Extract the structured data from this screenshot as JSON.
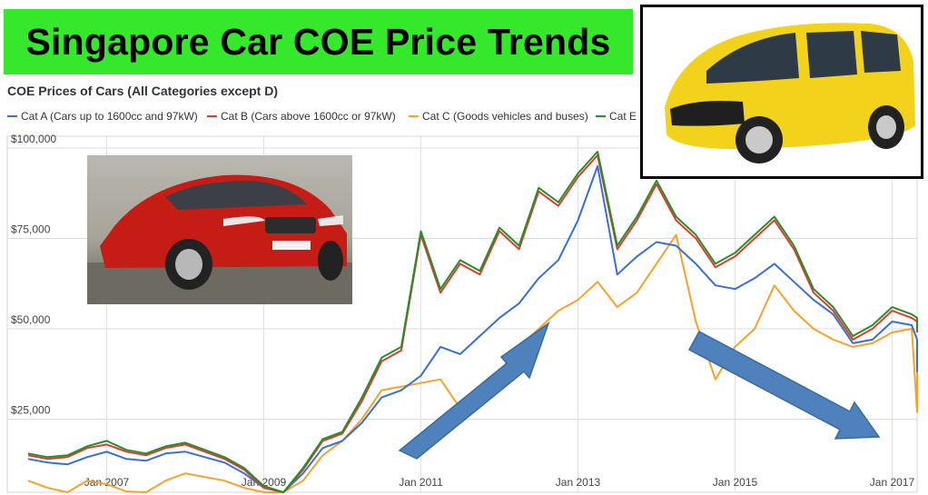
{
  "banner": {
    "title": "Singapore Car COE Price Trends"
  },
  "chart_title": "COE Prices of Cars (All Categories except D)",
  "colors": {
    "banner": "#36e82c",
    "cat_a": "#3a6fd0",
    "cat_b": "#d2432f",
    "cat_c": "#f3a32d",
    "cat_e": "#2e8a2e",
    "arrow": "#4f81bd"
  },
  "images": {
    "left_photo": "red sedan car photo",
    "right_photo": "yellow compact electric car photo"
  },
  "chart_data": {
    "type": "line",
    "title": "COE Prices of Cars (All Categories except D)",
    "xlabel": "",
    "ylabel": "",
    "xlim": [
      2006.0,
      2017.9
    ],
    "ylim": [
      0,
      100000
    ],
    "ytick_labels": [
      "$100,000",
      "$75,000",
      "$50,000",
      "$25,000"
    ],
    "yticks": [
      100000,
      75000,
      50000,
      25000
    ],
    "xtick_labels": [
      "Jan 2007",
      "Jan 2009",
      "Jan 2011",
      "Jan 2013",
      "Jan 2015",
      "Jan 2017"
    ],
    "xticks": [
      2007,
      2009,
      2011,
      2013,
      2015,
      2017
    ],
    "grid": true,
    "legend_position": "top",
    "series": [
      {
        "name": "Cat A (Cars up to 1600cc and 97kW)",
        "color": "#3a6fd0",
        "x": [
          2006.0,
          2006.25,
          2006.5,
          2006.75,
          2007.0,
          2007.25,
          2007.5,
          2007.75,
          2008.0,
          2008.25,
          2008.5,
          2008.75,
          2009.0,
          2009.25,
          2009.5,
          2009.75,
          2010.0,
          2010.25,
          2010.5,
          2010.75,
          2011.0,
          2011.25,
          2011.5,
          2011.75,
          2012.0,
          2012.25,
          2012.5,
          2012.75,
          2013.0,
          2013.25,
          2013.5,
          2013.75,
          2014.0,
          2014.25,
          2014.5,
          2014.75,
          2015.0,
          2015.25,
          2015.5,
          2015.75,
          2016.0,
          2016.25,
          2016.5,
          2016.75,
          2017.0,
          2017.25,
          2017.5,
          2017.75
        ],
        "values": [
          14000,
          13000,
          12500,
          14500,
          16000,
          14000,
          13500,
          15500,
          16000,
          14500,
          13000,
          10000,
          6000,
          4000,
          10000,
          17000,
          19000,
          24000,
          31000,
          33000,
          37000,
          45000,
          43000,
          48000,
          53000,
          57000,
          64000,
          69000,
          80000,
          95000,
          65000,
          70000,
          74000,
          73000,
          68000,
          62000,
          61000,
          64000,
          68000,
          63000,
          58000,
          54000,
          46000,
          47000,
          52000,
          51000,
          47000,
          38000
        ]
      },
      {
        "name": "Cat B (Cars above 1600cc or 97kW)",
        "color": "#d2432f",
        "x": [
          2006.0,
          2006.25,
          2006.5,
          2006.75,
          2007.0,
          2007.25,
          2007.5,
          2007.75,
          2008.0,
          2008.25,
          2008.5,
          2008.75,
          2009.0,
          2009.25,
          2009.5,
          2009.75,
          2010.0,
          2010.25,
          2010.5,
          2010.75,
          2011.0,
          2011.25,
          2011.5,
          2011.75,
          2012.0,
          2012.25,
          2012.5,
          2012.75,
          2013.0,
          2013.25,
          2013.5,
          2013.75,
          2014.0,
          2014.25,
          2014.5,
          2014.75,
          2015.0,
          2015.25,
          2015.5,
          2015.75,
          2016.0,
          2016.25,
          2016.5,
          2016.75,
          2017.0,
          2017.25,
          2017.5,
          2017.75
        ],
        "values": [
          15000,
          14000,
          14500,
          17000,
          18000,
          16000,
          15000,
          17000,
          18000,
          16000,
          14000,
          11000,
          6000,
          3000,
          11000,
          19000,
          21000,
          30000,
          41000,
          44000,
          76000,
          60000,
          68000,
          65000,
          77000,
          72000,
          88000,
          84000,
          92000,
          98000,
          72000,
          80000,
          90000,
          80000,
          75000,
          67000,
          70000,
          75000,
          80000,
          72000,
          60000,
          55000,
          47000,
          50000,
          55000,
          53000,
          52000,
          49000
        ]
      },
      {
        "name": "Cat C (Goods vehicles and buses)",
        "color": "#f3a32d",
        "x": [
          2006.0,
          2006.25,
          2006.5,
          2006.75,
          2007.0,
          2007.25,
          2007.5,
          2007.75,
          2008.0,
          2008.25,
          2008.5,
          2008.75,
          2009.0,
          2009.25,
          2009.5,
          2009.75,
          2010.0,
          2010.25,
          2010.5,
          2010.75,
          2011.0,
          2011.25,
          2011.5,
          2011.75,
          2012.0,
          2012.25,
          2012.5,
          2012.75,
          2013.0,
          2013.25,
          2013.5,
          2013.75,
          2014.0,
          2014.25,
          2014.5,
          2014.75,
          2015.0,
          2015.25,
          2015.5,
          2015.75,
          2016.0,
          2016.25,
          2016.5,
          2016.75,
          2017.0,
          2017.25,
          2017.5,
          2017.75
        ],
        "values": [
          8000,
          6000,
          4000,
          8000,
          7000,
          5000,
          4000,
          8000,
          10000,
          9000,
          8000,
          6000,
          3000,
          1500,
          8000,
          15000,
          19000,
          25000,
          33000,
          34000,
          35000,
          36000,
          28000,
          30000,
          38000,
          45000,
          50000,
          55000,
          58000,
          63000,
          56000,
          60000,
          68000,
          76000,
          52000,
          36000,
          45000,
          50000,
          62000,
          55000,
          50000,
          47000,
          45000,
          46000,
          49000,
          50000,
          27000,
          44000
        ]
      },
      {
        "name": "Cat E",
        "color": "#2e8a2e",
        "x": [
          2006.0,
          2006.25,
          2006.5,
          2006.75,
          2007.0,
          2007.25,
          2007.5,
          2007.75,
          2008.0,
          2008.25,
          2008.5,
          2008.75,
          2009.0,
          2009.25,
          2009.5,
          2009.75,
          2010.0,
          2010.25,
          2010.5,
          2010.75,
          2011.0,
          2011.25,
          2011.5,
          2011.75,
          2012.0,
          2012.25,
          2012.5,
          2012.75,
          2013.0,
          2013.25,
          2013.5,
          2013.75,
          2014.0,
          2014.25,
          2014.5,
          2014.75,
          2015.0,
          2015.25,
          2015.5,
          2015.75,
          2016.0,
          2016.25,
          2016.5,
          2016.75,
          2017.0,
          2017.25,
          2017.5,
          2017.75
        ],
        "values": [
          15500,
          14500,
          15000,
          17500,
          19000,
          16500,
          15500,
          17500,
          18500,
          16500,
          14500,
          11500,
          6500,
          3500,
          11500,
          19500,
          21500,
          31000,
          42000,
          45000,
          77000,
          61000,
          69000,
          66000,
          78000,
          73000,
          89000,
          85000,
          93000,
          99000,
          73000,
          81000,
          91000,
          81000,
          76000,
          68000,
          71000,
          76000,
          81000,
          73000,
          61000,
          56000,
          48000,
          51000,
          56000,
          54000,
          53000,
          50000
        ]
      }
    ]
  }
}
